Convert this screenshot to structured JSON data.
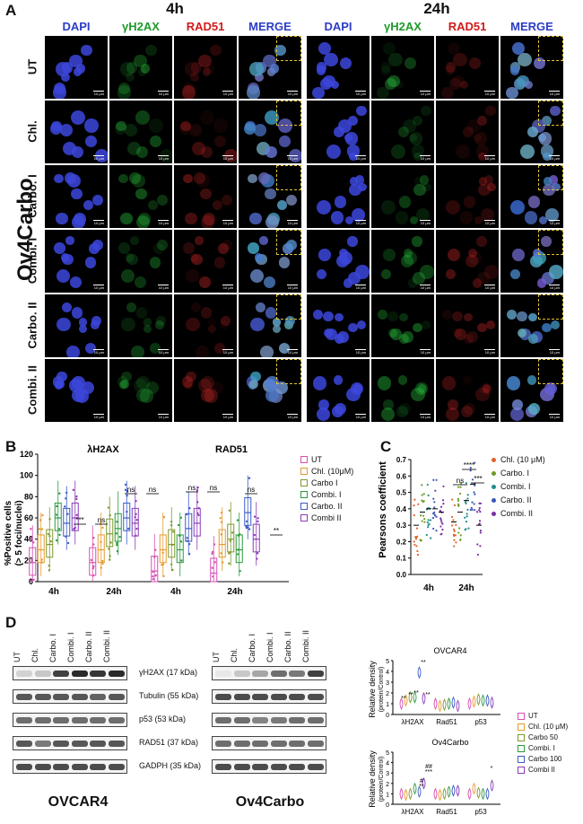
{
  "panelA": {
    "letter": "A",
    "time_titles": [
      "4h",
      "24h"
    ],
    "columns": [
      {
        "label": "DAPI",
        "color": "#2c3cc8"
      },
      {
        "label": "γH2AX",
        "color": "#1f9a2a"
      },
      {
        "label": "RAD51",
        "color": "#d11a1a"
      },
      {
        "label": "MERGE",
        "color": "#2c3cc8"
      }
    ],
    "rows": [
      "UT",
      "Chl.",
      "Carbo. I",
      "Combi. I",
      "Carbo. II",
      "Combi. II"
    ],
    "cell_line": "Ov4Carbo",
    "scale_label": "10 µm"
  },
  "panelB": {
    "letter": "B",
    "ylabel_line1": "%Positive cells",
    "ylabel_line2": "(> 5 foci/nuclei)",
    "subtitle_left": "λH2AX",
    "subtitle_right": "RAD51",
    "yticks": [
      "0",
      "20",
      "40",
      "60",
      "80",
      "100",
      "120"
    ],
    "xlabels": [
      "4h",
      "24h",
      "4h",
      "24h"
    ],
    "annotations": [
      "***",
      "ns",
      "ns",
      "ns",
      "ns",
      "ns",
      "ns",
      "**"
    ],
    "legend": [
      {
        "label": "UT",
        "color": "#d84fb4"
      },
      {
        "label": "Chl. (10μM)",
        "color": "#e69a2d"
      },
      {
        "label": "Carbo I",
        "color": "#7d9a2d"
      },
      {
        "label": "Combi. I",
        "color": "#2a9a3f"
      },
      {
        "label": "Carbo. II",
        "color": "#3b5bc8"
      },
      {
        "label": "Combi II",
        "color": "#8a3cb8"
      }
    ]
  },
  "panelC": {
    "letter": "C",
    "ylabel": "Pearsons coefficient",
    "yticks": [
      "0.0",
      "0.1",
      "0.2",
      "0.3",
      "0.4",
      "0.5",
      "0.6",
      "0.7"
    ],
    "xlabels": [
      "4h",
      "24h"
    ],
    "annotations": [
      "****",
      "ns",
      "***"
    ],
    "legend": [
      {
        "label": "Chl. (10 μM)",
        "color": "#e2622a"
      },
      {
        "label": "Carbo. I",
        "color": "#6e9a28"
      },
      {
        "label": "Combi. I",
        "color": "#1f8f8a"
      },
      {
        "label": "Carbo. II",
        "color": "#3f56b8"
      },
      {
        "label": "Combi. II",
        "color": "#7a2fa5"
      }
    ]
  },
  "panelD": {
    "letter": "D",
    "lanes_left": [
      "UT",
      "Chl.",
      "Carbo. I",
      "Combi. I",
      "Carbo. II",
      "Combi. II"
    ],
    "lanes_right": [
      "UT",
      "Chl.",
      "Carbo. I",
      "Combi. I",
      "Carbo. II",
      "Combi. II"
    ],
    "proteins": [
      "γH2AX (17 kDa)",
      "Tubulin (55 kDa)",
      "p53 (53 kDa)",
      "RAD51 (37 kDa)",
      "GADPH (35 kDa)"
    ],
    "cell_left": "OVCAR4",
    "cell_right": "Ov4Carbo",
    "chart_top_title": "OVCAR4",
    "chart_bottom_title": "Ov4Carbo",
    "chart_ylabel_1": "Relative density",
    "chart_ylabel_2": "(protein/Control)",
    "top_yticks": [
      "0",
      "1",
      "2",
      "3",
      "4",
      "5"
    ],
    "top_xlabels": [
      "λH2AX",
      "Rad51",
      "p53"
    ],
    "top_annotations": [
      "**",
      "**",
      "**",
      "**",
      "**"
    ],
    "bottom_yticks": [
      "0",
      "1",
      "2",
      "3",
      "4",
      "5"
    ],
    "bottom_xlabels": [
      "λH2AX",
      "Rad51",
      "p53"
    ],
    "bottom_annotations": [
      "#",
      "**",
      "##",
      "***",
      "*"
    ],
    "legend": [
      {
        "label": "UT",
        "color": "#d84fb4"
      },
      {
        "label": "Chl. (10 μM)",
        "color": "#e69a2d"
      },
      {
        "label": "Carbo 50",
        "color": "#7d9a2d"
      },
      {
        "label": "Combi. I",
        "color": "#2a9a3f"
      },
      {
        "label": "Carbo 100",
        "color": "#3b5bc8"
      },
      {
        "label": "Combi II",
        "color": "#8a3cb8"
      }
    ]
  },
  "chart_data": [
    {
      "type": "box",
      "panel": "B",
      "title": "",
      "subtitles": [
        "λH2AX",
        "RAD51"
      ],
      "ylabel": "%Positive cells (> 5 foci/nuclei)",
      "ylim": [
        0,
        120
      ],
      "groups": [
        "4h",
        "24h",
        "4h",
        "24h"
      ],
      "series": [
        {
          "name": "UT",
          "medians": [
            18,
            18,
            10,
            8
          ]
        },
        {
          "name": "Chl. (10μM)",
          "medians": [
            30,
            30,
            30,
            35
          ]
        },
        {
          "name": "Carbo I",
          "medians": [
            35,
            45,
            35,
            40
          ]
        },
        {
          "name": "Combi. I",
          "medians": [
            60,
            50,
            30,
            30
          ]
        },
        {
          "name": "Carbo. II",
          "medians": [
            55,
            60,
            50,
            65
          ]
        },
        {
          "name": "Combi II",
          "medians": [
            60,
            55,
            55,
            40
          ]
        }
      ]
    },
    {
      "type": "scatter",
      "panel": "C",
      "ylabel": "Pearsons coefficient",
      "ylim": [
        0,
        0.7
      ],
      "groups": [
        "4h",
        "24h"
      ],
      "series": [
        {
          "name": "Chl. (10 μM)",
          "medians": [
            0.3,
            0.32
          ]
        },
        {
          "name": "Carbo. I",
          "medians": [
            0.38,
            0.38
          ]
        },
        {
          "name": "Combi. I",
          "medians": [
            0.4,
            0.45
          ]
        },
        {
          "name": "Carbo. II",
          "medians": [
            0.4,
            0.55
          ]
        },
        {
          "name": "Combi. II",
          "medians": [
            0.38,
            0.3
          ]
        }
      ]
    },
    {
      "type": "violin",
      "panel": "D-OVCAR4",
      "title": "OVCAR4",
      "ylabel": "Relative density (protein/Control)",
      "ylim": [
        0,
        5
      ],
      "categories": [
        "λH2AX",
        "Rad51",
        "p53"
      ],
      "series": [
        {
          "name": "UT",
          "values": [
            1,
            1,
            1
          ]
        },
        {
          "name": "Chl. (10 μM)",
          "values": [
            1.3,
            0.8,
            1.2
          ]
        },
        {
          "name": "Carbo 50",
          "values": [
            1.6,
            0.9,
            1.4
          ]
        },
        {
          "name": "Combi. I",
          "values": [
            1.6,
            1.0,
            1.3
          ]
        },
        {
          "name": "Carbo 100",
          "values": [
            3.9,
            1.1,
            1.3
          ]
        },
        {
          "name": "Combi II",
          "values": [
            1.5,
            0.8,
            1.1
          ]
        }
      ]
    },
    {
      "type": "violin",
      "panel": "D-Ov4Carbo",
      "title": "Ov4Carbo",
      "ylabel": "Relative density (protein/Control)",
      "ylim": [
        0,
        5
      ],
      "categories": [
        "λH2AX",
        "Rad51",
        "p53"
      ],
      "series": [
        {
          "name": "UT",
          "values": [
            1,
            1,
            1
          ]
        },
        {
          "name": "Chl. (10 μM)",
          "values": [
            0.9,
            0.9,
            1.5
          ]
        },
        {
          "name": "Carbo 50",
          "values": [
            1.0,
            1.0,
            1.1
          ]
        },
        {
          "name": "Combi. I",
          "values": [
            1.5,
            1.2,
            1.0
          ]
        },
        {
          "name": "Carbo 100",
          "values": [
            1.2,
            1.3,
            1.0
          ]
        },
        {
          "name": "Combi II",
          "values": [
            2.0,
            1.3,
            1.8
          ]
        }
      ]
    }
  ]
}
